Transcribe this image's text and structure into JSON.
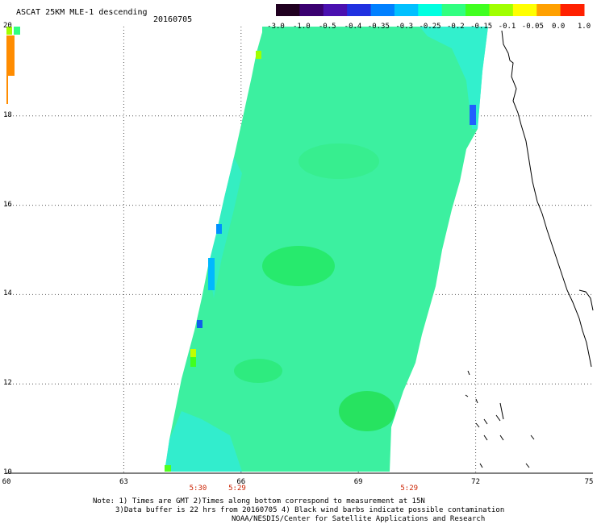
{
  "title": "ASCAT 25KM MLE-1 descending",
  "date": "20160705",
  "colorbar": {
    "labels": [
      "-3.0",
      "-1.0",
      "-0.5",
      "-0.4",
      "-0.35",
      "-0.3",
      "-0.25",
      "-0.2",
      "-0.15",
      "-0.1",
      "-0.05",
      "0.0",
      "1.0"
    ],
    "colors": [
      "#200020",
      "#3a0070",
      "#4a10b0",
      "#2030e0",
      "#0080ff",
      "#00c0ff",
      "#00ffe0",
      "#30ff80",
      "#40ff20",
      "#a0ff00",
      "#ffff00",
      "#ffa000",
      "#ff2000"
    ]
  },
  "axes": {
    "y_ticks": [
      "20",
      "18",
      "16",
      "14",
      "12",
      "10"
    ],
    "x_ticks": [
      "60",
      "63",
      "66",
      "69",
      "72",
      "75"
    ]
  },
  "times": [
    {
      "label": "5:30",
      "lon": 64.9
    },
    {
      "label": "5:29",
      "lon": 65.9
    },
    {
      "label": "5:29",
      "lon": 70.3
    }
  ],
  "notes": [
    "Note: 1) Times are GMT 2)Times along bottom correspond to measurement at 15N",
    "3)Data buffer is 22 hrs from 20160705 4) Black wind barbs indicate possible contamination",
    "NOAA/NESDIS/Center for Satellite Applications and Research"
  ],
  "swath_color": "#3cf0a0",
  "coast_color": "#000000"
}
